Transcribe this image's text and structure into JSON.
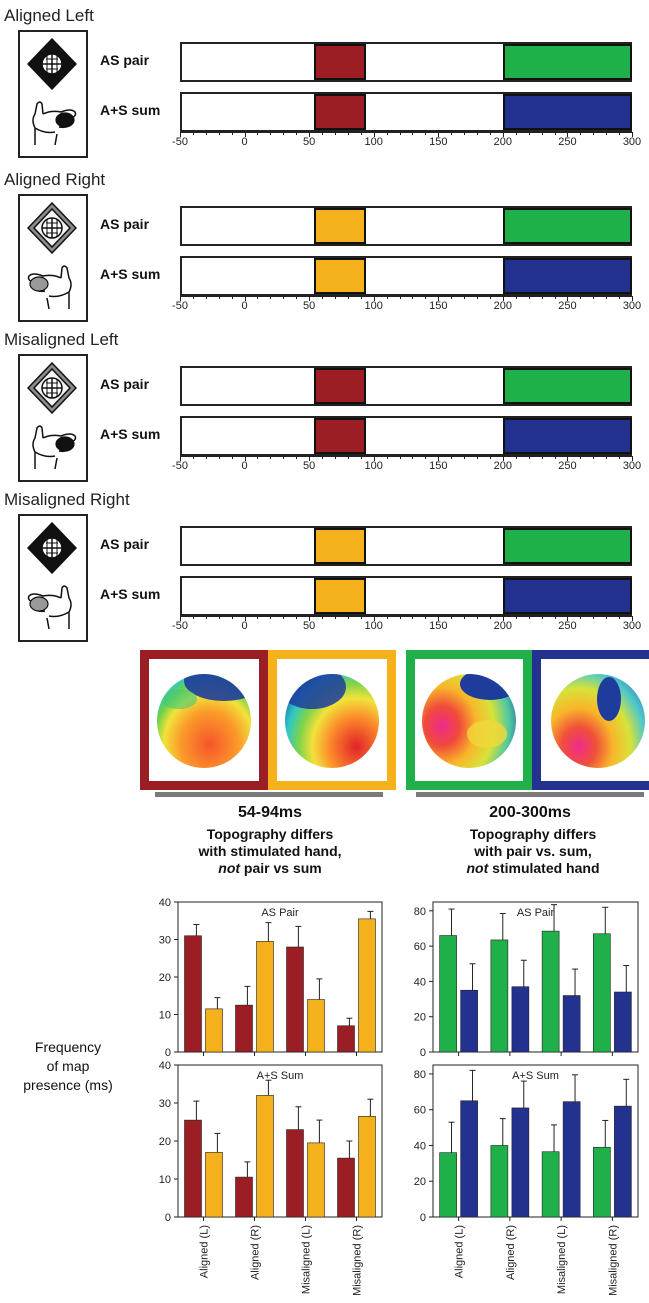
{
  "conditions": [
    {
      "title": "Aligned  Left",
      "early_color": "#9a1e24"
    },
    {
      "title": "Aligned Right",
      "early_color": "#f5b11b"
    },
    {
      "title": "Misaligned Left",
      "early_color": "#9a1e24"
    },
    {
      "title": "Misaligned Right",
      "early_color": "#f5b11b"
    }
  ],
  "row_labels": {
    "pair": "AS pair",
    "sum": "A+S sum"
  },
  "timeline": {
    "ticks": [
      "-50",
      "0",
      "50",
      "100",
      "150",
      "200",
      "250",
      "300"
    ],
    "early_window": [
      54,
      94
    ],
    "late_window": [
      200,
      300
    ],
    "pair_late_color": "#1fb04a",
    "sum_late_color": "#23318f"
  },
  "windows": [
    {
      "range": "54-94ms",
      "desc_line1": "Topography differs",
      "desc_line2": "with stimulated hand,",
      "desc_em": "not",
      "desc_rest": " pair vs sum"
    },
    {
      "range": "200-300ms",
      "desc_line1": "Topography differs",
      "desc_line2": "with pair vs. sum,",
      "desc_em": "not",
      "desc_rest": " stimulated hand"
    }
  ],
  "y_axis_label": {
    "line1": "Frequency",
    "line2": "of map",
    "line3": "presence (ms)"
  },
  "colors": {
    "dark_red": "#9a1e24",
    "orange": "#f5b11b",
    "green": "#1fb04a",
    "blue": "#23318f",
    "gray_bar": "#7a7a7a"
  },
  "chart_data": [
    {
      "type": "bar",
      "title": "AS Pair",
      "ylim": [
        0,
        40
      ],
      "yticks": [
        0,
        10,
        20,
        30,
        40
      ],
      "categories": [
        "Aligned (L)",
        "Aligned (R)",
        "Misaligned (L)",
        "Misaligned (R)"
      ],
      "series": [
        {
          "color": "#9a1e24",
          "values": [
            31,
            12.5,
            28,
            7
          ],
          "errors": [
            3,
            5,
            5.5,
            2
          ]
        },
        {
          "color": "#f5b11b",
          "values": [
            11.5,
            29.5,
            14,
            35.5
          ],
          "errors": [
            3,
            5,
            5.5,
            2
          ]
        }
      ]
    },
    {
      "type": "bar",
      "title": "A+S Sum",
      "ylim": [
        0,
        40
      ],
      "yticks": [
        0,
        10,
        20,
        30,
        40
      ],
      "categories": [
        "Aligned (L)",
        "Aligned (R)",
        "Misaligned (L)",
        "Misaligned (R)"
      ],
      "series": [
        {
          "color": "#9a1e24",
          "values": [
            25.5,
            10.5,
            23,
            15.5
          ],
          "errors": [
            5,
            4,
            6,
            4.5
          ]
        },
        {
          "color": "#f5b11b",
          "values": [
            17,
            32,
            19.5,
            26.5
          ],
          "errors": [
            5,
            4,
            6,
            4.5
          ]
        }
      ]
    },
    {
      "type": "bar",
      "title": "AS Pair",
      "ylim": [
        0,
        85
      ],
      "yticks": [
        0,
        20,
        40,
        60,
        80
      ],
      "categories": [
        "Aligned (L)",
        "Aligned (R)",
        "Misaligned (L)",
        "Misaligned (R)"
      ],
      "series": [
        {
          "color": "#1fb04a",
          "values": [
            66,
            63.5,
            68.5,
            67
          ],
          "errors": [
            15,
            15,
            15,
            15
          ]
        },
        {
          "color": "#23318f",
          "values": [
            35,
            37,
            32,
            34
          ],
          "errors": [
            15,
            15,
            15,
            15
          ]
        }
      ]
    },
    {
      "type": "bar",
      "title": "A+S Sum",
      "ylim": [
        0,
        85
      ],
      "yticks": [
        0,
        20,
        40,
        60,
        80
      ],
      "categories": [
        "Aligned (L)",
        "Aligned (R)",
        "Misaligned (L)",
        "Misaligned (R)"
      ],
      "series": [
        {
          "color": "#1fb04a",
          "values": [
            36,
            40,
            36.5,
            39
          ],
          "errors": [
            17,
            15,
            15,
            15
          ]
        },
        {
          "color": "#23318f",
          "values": [
            65,
            61,
            64.5,
            62
          ],
          "errors": [
            17,
            15,
            15,
            15
          ]
        }
      ]
    }
  ]
}
